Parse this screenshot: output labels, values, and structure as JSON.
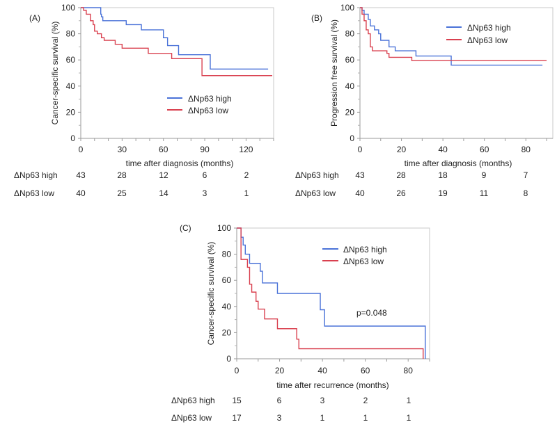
{
  "chart_data": [
    {
      "type": "line",
      "subtype": "kaplan-meier",
      "panel_label": "(A)",
      "title": "",
      "xlabel": "time after diagnosis (months)",
      "ylabel": "Cancer-specific survival (%)",
      "xlim": [
        0,
        140
      ],
      "ylim": [
        0,
        100
      ],
      "xticks": [
        0,
        30,
        60,
        90,
        120
      ],
      "yticks": [
        0,
        20,
        40,
        60,
        80,
        100
      ],
      "grid": false,
      "legend_position": "center-right",
      "annotation": "",
      "series": [
        {
          "name": "ΔNp63 high",
          "color": "#4a72d8",
          "x": [
            0,
            14,
            14.5,
            15,
            16,
            33,
            44,
            60,
            63,
            71,
            94,
            136
          ],
          "y": [
            100,
            100,
            95,
            93,
            90,
            87,
            83,
            77,
            71,
            64,
            53,
            53
          ]
        },
        {
          "name": "ΔNp63 low",
          "color": "#d9404f",
          "x": [
            0,
            2,
            4,
            7,
            9,
            10,
            12,
            15,
            17,
            25,
            30,
            49,
            66,
            88,
            139
          ],
          "y": [
            100,
            98,
            95,
            90,
            87,
            82,
            80,
            77,
            75,
            72,
            69,
            65,
            61,
            48,
            48
          ]
        }
      ],
      "risk_table": {
        "times": [
          0,
          30,
          60,
          90,
          120
        ],
        "rows": [
          {
            "label": "ΔNp63 high",
            "values": [
              "43",
              "28",
              "12",
              "6",
              "2"
            ]
          },
          {
            "label": "ΔNp63 low",
            "values": [
              "40",
              "25",
              "14",
              "3",
              "1"
            ]
          }
        ]
      }
    },
    {
      "type": "line",
      "subtype": "kaplan-meier",
      "panel_label": "(B)",
      "title": "",
      "xlabel": "time after diagnosis (months)",
      "ylabel": "Progression free survival (%)",
      "xlim": [
        0,
        93
      ],
      "ylim": [
        0,
        100
      ],
      "xticks": [
        0,
        20,
        40,
        60,
        80
      ],
      "yticks": [
        0,
        20,
        40,
        60,
        80,
        100
      ],
      "grid": false,
      "legend_position": "top-right",
      "annotation": "",
      "series": [
        {
          "name": "ΔNp63 high",
          "color": "#4a72d8",
          "x": [
            0,
            1,
            2,
            4,
            5,
            7,
            9,
            10,
            14,
            17,
            27,
            44,
            88
          ],
          "y": [
            100,
            98,
            95,
            91,
            86,
            83,
            80,
            75,
            70,
            67,
            63,
            56,
            56
          ]
        },
        {
          "name": "ΔNp63 low",
          "color": "#d9404f",
          "x": [
            0,
            1,
            2,
            3,
            4,
            5,
            6,
            13,
            14,
            25,
            90
          ],
          "y": [
            100,
            95,
            90,
            83,
            80,
            70,
            67,
            65,
            62,
            59.5,
            59.5
          ]
        }
      ],
      "risk_table": {
        "times": [
          0,
          20,
          40,
          60,
          80
        ],
        "rows": [
          {
            "label": "ΔNp63 high",
            "values": [
              "43",
              "28",
              "18",
              "9",
              "7"
            ]
          },
          {
            "label": "ΔNp63 low",
            "values": [
              "40",
              "26",
              "19",
              "11",
              "8"
            ]
          }
        ]
      }
    },
    {
      "type": "line",
      "subtype": "kaplan-meier",
      "panel_label": "(C)",
      "title": "",
      "xlabel": "time after recurrence (months)",
      "ylabel": "Cancer-specific survival (%)",
      "xlim": [
        0,
        90
      ],
      "ylim": [
        0,
        100
      ],
      "xticks": [
        0,
        20,
        40,
        60,
        80
      ],
      "yticks": [
        0,
        20,
        40,
        60,
        80,
        100
      ],
      "grid": false,
      "legend_position": "top-right",
      "annotation": "p=0.048",
      "series": [
        {
          "name": "ΔNp63 high",
          "color": "#4a72d8",
          "x": [
            0,
            2,
            3,
            4,
            6,
            11,
            12,
            19,
            39,
            41,
            88
          ],
          "y": [
            100,
            93,
            87,
            80,
            73,
            67,
            58,
            50,
            37.5,
            25,
            0
          ]
        },
        {
          "name": "ΔNp63 low",
          "color": "#d9404f",
          "x": [
            0,
            2,
            5,
            6,
            7,
            9,
            10,
            13,
            19,
            28,
            29,
            87
          ],
          "y": [
            100,
            76,
            70,
            57,
            51,
            44,
            38,
            30.5,
            23,
            15,
            7.7,
            0
          ]
        }
      ],
      "risk_table": {
        "times": [
          0,
          20,
          40,
          60,
          80
        ],
        "rows": [
          {
            "label": "ΔNp63 high",
            "values": [
              "15",
              "6",
              "3",
              "2",
              "1"
            ]
          },
          {
            "label": "ΔNp63 low",
            "values": [
              "17",
              "3",
              "1",
              "1",
              "1"
            ]
          }
        ]
      }
    }
  ]
}
